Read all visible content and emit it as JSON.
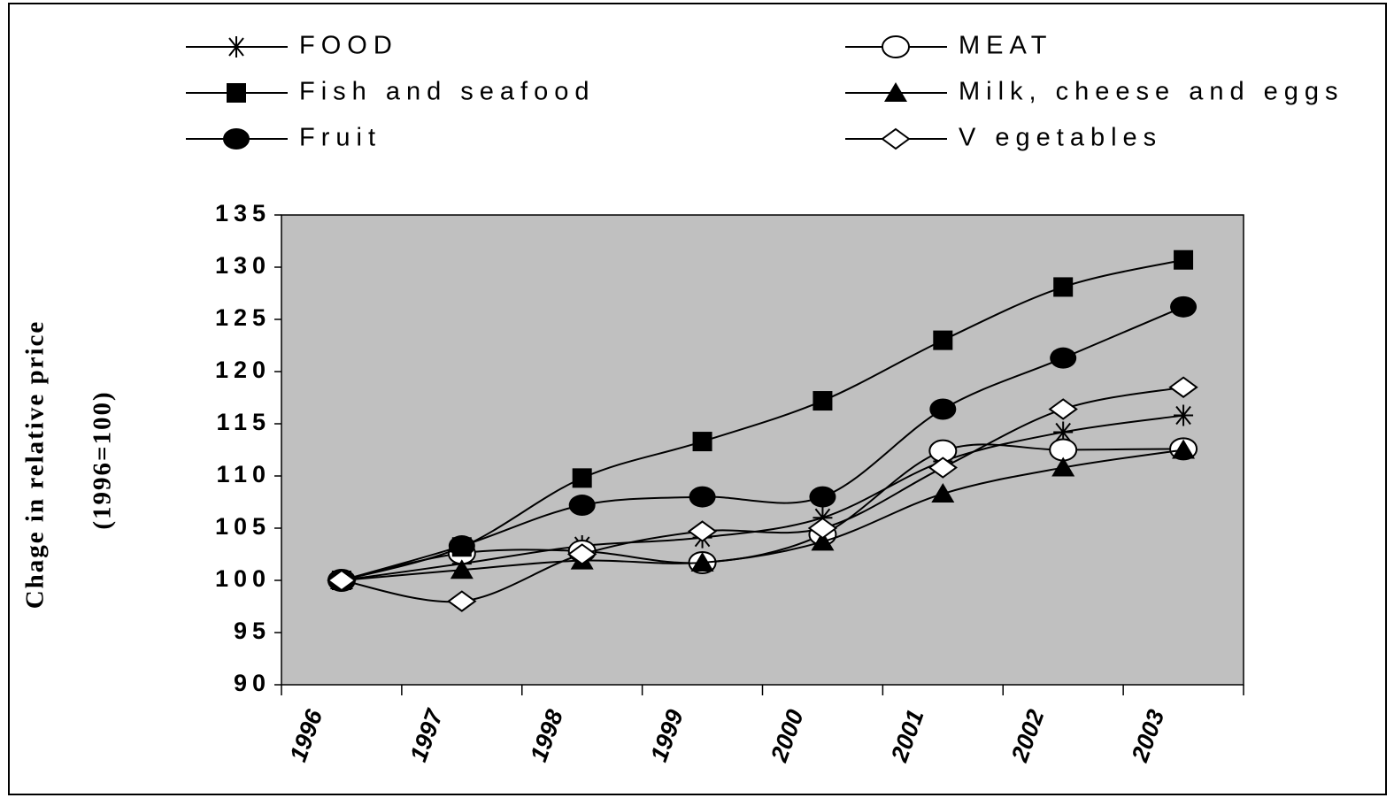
{
  "chart_data": {
    "type": "line",
    "ylabel": [
      "Chage in relative price",
      "(1996=100)"
    ],
    "categories": [
      "1996",
      "1997",
      "1998",
      "1999",
      "2000",
      "2001",
      "2002",
      "2003"
    ],
    "ylim": [
      90,
      135
    ],
    "yticks": [
      90,
      95,
      100,
      105,
      110,
      115,
      120,
      125,
      130,
      135
    ],
    "plot_background": "#c0c0c0",
    "series": [
      {
        "name": "FOOD",
        "color": "#000000",
        "marker": "star",
        "values": [
          100,
          101.6,
          103.3,
          104.1,
          106.0,
          111.4,
          114.2,
          115.8
        ]
      },
      {
        "name": "MEAT",
        "color": "#000000",
        "marker": "circle-open",
        "values": [
          100,
          102.6,
          102.8,
          101.7,
          104.4,
          112.4,
          112.5,
          112.6
        ]
      },
      {
        "name": "Fish and seafood",
        "color": "#000000",
        "marker": "square",
        "values": [
          100,
          103.2,
          109.8,
          113.3,
          117.2,
          123.0,
          128.1,
          130.7
        ]
      },
      {
        "name": "Milk, cheese and eggs",
        "color": "#000000",
        "marker": "triangle",
        "values": [
          100,
          101.0,
          101.9,
          101.7,
          103.7,
          108.3,
          110.8,
          112.5
        ]
      },
      {
        "name": "Fruit",
        "color": "#000000",
        "marker": "circle",
        "values": [
          100,
          103.3,
          107.2,
          108.0,
          108.0,
          116.4,
          121.3,
          126.2
        ]
      },
      {
        "name": "V egetables",
        "color": "#000000",
        "marker": "diamond-open",
        "values": [
          100,
          98.0,
          102.5,
          104.7,
          105.0,
          110.8,
          116.4,
          118.5
        ]
      }
    ]
  }
}
